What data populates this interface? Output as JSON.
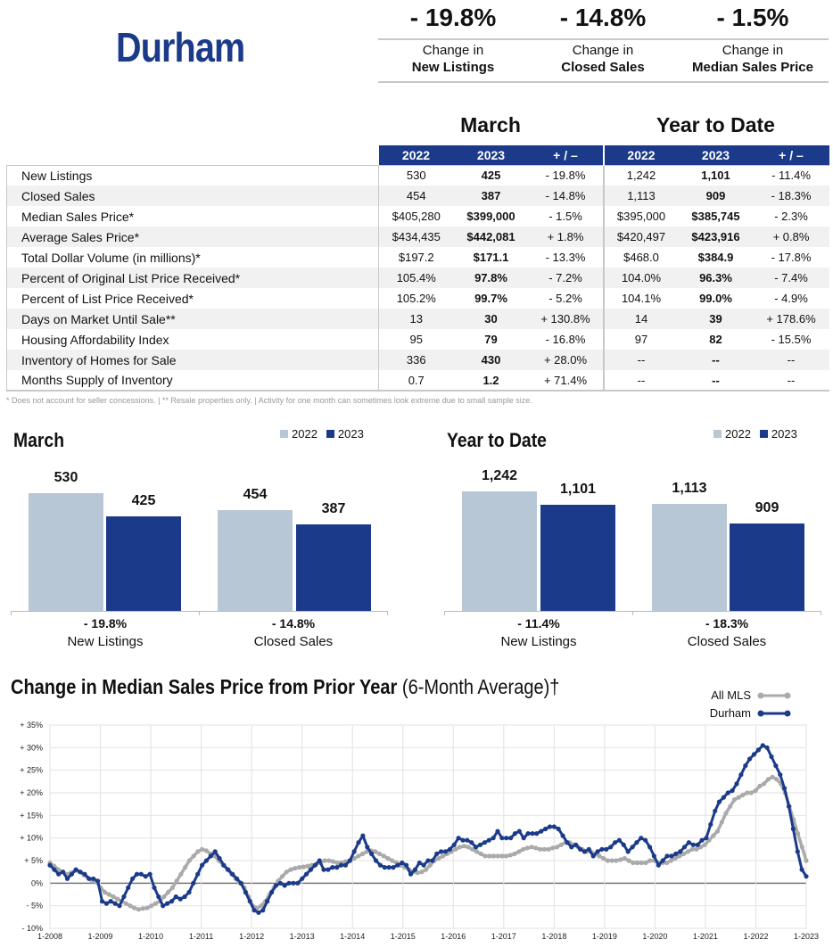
{
  "area_name": "Durham",
  "kpis": [
    {
      "value": "- 19.8%",
      "line1": "Change in",
      "line2": "New Listings"
    },
    {
      "value": "- 14.8%",
      "line1": "Change in",
      "line2": "Closed Sales"
    },
    {
      "value": "- 1.5%",
      "line1": "Change in",
      "line2": "Median Sales Price"
    }
  ],
  "table": {
    "period1": "March",
    "period2": "Year to Date",
    "columns": [
      "2022",
      "2023",
      "+ / –",
      "2022",
      "2023",
      "+ / –"
    ],
    "rows": [
      {
        "label": "New Listings",
        "m22": "530",
        "m23": "425",
        "mchg": "- 19.8%",
        "y22": "1,242",
        "y23": "1,101",
        "ychg": "- 11.4%"
      },
      {
        "label": "Closed Sales",
        "m22": "454",
        "m23": "387",
        "mchg": "- 14.8%",
        "y22": "1,113",
        "y23": "909",
        "ychg": "- 18.3%"
      },
      {
        "label": "Median Sales Price*",
        "m22": "$405,280",
        "m23": "$399,000",
        "mchg": "- 1.5%",
        "y22": "$395,000",
        "y23": "$385,745",
        "ychg": "- 2.3%"
      },
      {
        "label": "Average Sales Price*",
        "m22": "$434,435",
        "m23": "$442,081",
        "mchg": "+ 1.8%",
        "y22": "$420,497",
        "y23": "$423,916",
        "ychg": "+ 0.8%"
      },
      {
        "label": "Total Dollar Volume (in millions)*",
        "m22": "$197.2",
        "m23": "$171.1",
        "mchg": "- 13.3%",
        "y22": "$468.0",
        "y23": "$384.9",
        "ychg": "- 17.8%"
      },
      {
        "label": "Percent of Original List Price Received*",
        "m22": "105.4%",
        "m23": "97.8%",
        "mchg": "- 7.2%",
        "y22": "104.0%",
        "y23": "96.3%",
        "ychg": "- 7.4%"
      },
      {
        "label": "Percent of List Price Received*",
        "m22": "105.2%",
        "m23": "99.7%",
        "mchg": "- 5.2%",
        "y22": "104.1%",
        "y23": "99.0%",
        "ychg": "- 4.9%"
      },
      {
        "label": "Days on Market Until Sale**",
        "m22": "13",
        "m23": "30",
        "mchg": "+ 130.8%",
        "y22": "14",
        "y23": "39",
        "ychg": "+ 178.6%"
      },
      {
        "label": "Housing Affordability Index",
        "m22": "95",
        "m23": "79",
        "mchg": "- 16.8%",
        "y22": "97",
        "y23": "82",
        "ychg": "- 15.5%"
      },
      {
        "label": "Inventory of Homes for Sale",
        "m22": "336",
        "m23": "430",
        "mchg": "+ 28.0%",
        "y22": "--",
        "y23": "--",
        "ychg": "--"
      },
      {
        "label": "Months Supply of Inventory",
        "m22": "0.7",
        "m23": "1.2",
        "mchg": "+ 71.4%",
        "y22": "--",
        "y23": "--",
        "ychg": "--"
      }
    ],
    "footnote": "* Does not account for seller concessions.  |  ** Resale properties only.  |  Activity for one month can sometimes look extreme due to small sample size."
  },
  "colors": {
    "brand": "#1b3b8a",
    "light": "#b7c7d6",
    "allmls": "#aaaaaa",
    "neg": "#111111"
  },
  "chart_data": [
    {
      "type": "bar",
      "title": "March",
      "legend": [
        "2022",
        "2023"
      ],
      "categories": [
        "New Listings",
        "Closed Sales"
      ],
      "category_changes": [
        "- 19.8%",
        "- 14.8%"
      ],
      "series": [
        {
          "name": "2022",
          "values": [
            530,
            454
          ],
          "labels": [
            "530",
            "454"
          ]
        },
        {
          "name": "2023",
          "values": [
            425,
            387
          ],
          "labels": [
            "425",
            "387"
          ]
        }
      ],
      "legend_position": "top-right"
    },
    {
      "type": "bar",
      "title": "Year to Date",
      "legend": [
        "2022",
        "2023"
      ],
      "categories": [
        "New Listings",
        "Closed Sales"
      ],
      "category_changes": [
        "- 11.4%",
        "- 18.3%"
      ],
      "series": [
        {
          "name": "2022",
          "values": [
            1242,
            1113
          ],
          "labels": [
            "1,242",
            "1,113"
          ]
        },
        {
          "name": "2023",
          "values": [
            1101,
            909
          ],
          "labels": [
            "1,101",
            "909"
          ]
        }
      ],
      "legend_position": "top-right"
    },
    {
      "type": "line",
      "title": "Change in Median Sales Price from Prior Year",
      "subtitle": "(6-Month Average)†",
      "legend_position": "top-right",
      "grid": true,
      "ylim": [
        -10,
        35
      ],
      "y_ticks": [
        {
          "value": -10,
          "label": "- 10%"
        },
        {
          "value": -5,
          "label": "- 5%"
        },
        {
          "value": 0,
          "label": "0%"
        },
        {
          "value": 5,
          "label": "+ 5%"
        },
        {
          "value": 10,
          "label": "+ 10%"
        },
        {
          "value": 15,
          "label": "+ 15%"
        },
        {
          "value": 20,
          "label": "+ 20%"
        },
        {
          "value": 25,
          "label": "+ 25%"
        },
        {
          "value": 30,
          "label": "+ 30%"
        },
        {
          "value": 35,
          "label": "+ 35%"
        }
      ],
      "x_ticks": [
        "1-2008",
        "1-2009",
        "1-2010",
        "1-2011",
        "1-2012",
        "1-2013",
        "1-2014",
        "1-2015",
        "1-2016",
        "1-2017",
        "1-2018",
        "1-2019",
        "1-2020",
        "1-2021",
        "1-2022",
        "1-2023"
      ],
      "x_start_year": 2008,
      "series": [
        {
          "name": "All MLS",
          "values": [
            4.5,
            3.8,
            3.0,
            2.5,
            2.0,
            2.3,
            2.8,
            2.5,
            1.8,
            1.2,
            0.5,
            0.2,
            -1.0,
            -2.0,
            -2.5,
            -3.0,
            -3.5,
            -4.0,
            -4.5,
            -5.0,
            -5.5,
            -5.8,
            -5.6,
            -5.5,
            -5.0,
            -4.5,
            -4.0,
            -3.0,
            -2.0,
            -1.0,
            0.5,
            2.0,
            3.5,
            5.0,
            6.0,
            7.0,
            7.5,
            7.2,
            6.5,
            6.0,
            5.0,
            4.0,
            3.0,
            2.0,
            1.0,
            0.0,
            -1.0,
            -3.0,
            -5.0,
            -5.5,
            -5.0,
            -4.0,
            -2.5,
            -1.0,
            0.5,
            1.5,
            2.5,
            3.0,
            3.3,
            3.5,
            3.6,
            3.8,
            4.0,
            4.2,
            4.5,
            5.0,
            5.0,
            4.8,
            4.5,
            4.5,
            4.8,
            5.0,
            5.5,
            6.0,
            6.5,
            7.0,
            7.2,
            7.0,
            6.5,
            6.0,
            5.5,
            5.0,
            4.5,
            4.0,
            3.5,
            3.0,
            2.5,
            2.3,
            2.5,
            3.0,
            4.0,
            5.0,
            5.5,
            6.0,
            6.5,
            7.0,
            7.5,
            8.0,
            8.2,
            8.0,
            7.5,
            7.0,
            6.5,
            6.0,
            6.0,
            6.0,
            6.0,
            6.0,
            6.0,
            6.2,
            6.5,
            7.0,
            7.5,
            7.8,
            8.0,
            7.8,
            7.5,
            7.5,
            7.5,
            7.8,
            8.0,
            8.5,
            9.0,
            9.0,
            8.5,
            8.0,
            7.5,
            7.0,
            7.0,
            6.5,
            6.0,
            5.5,
            5.0,
            5.0,
            5.0,
            5.2,
            5.5,
            5.0,
            4.5,
            4.5,
            4.5,
            4.5,
            5.0,
            5.0,
            4.5,
            4.5,
            4.5,
            5.0,
            5.5,
            6.0,
            6.5,
            7.0,
            7.5,
            7.5,
            8.0,
            8.5,
            9.5,
            10.5,
            11.5,
            13.5,
            15.5,
            17.0,
            18.5,
            19.0,
            19.5,
            20.0,
            20.0,
            20.5,
            21.5,
            22.0,
            23.0,
            23.5,
            23.0,
            22.0,
            20.0,
            17.0,
            14.0,
            11.0,
            8.0,
            5.0
          ]
        },
        {
          "name": "Durham",
          "values": [
            4.0,
            3.0,
            2.0,
            2.5,
            1.0,
            2.0,
            3.0,
            2.5,
            2.0,
            1.0,
            1.0,
            0.5,
            -4.0,
            -4.5,
            -4.0,
            -4.5,
            -5.0,
            -3.0,
            -1.0,
            1.0,
            2.0,
            2.0,
            1.5,
            2.0,
            -1.0,
            -3.0,
            -5.0,
            -4.5,
            -4.0,
            -3.0,
            -3.5,
            -3.0,
            -2.0,
            0.0,
            2.0,
            4.0,
            5.0,
            6.0,
            7.0,
            5.5,
            4.0,
            3.0,
            2.0,
            1.0,
            0.0,
            -2.0,
            -4.0,
            -6.0,
            -6.5,
            -6.0,
            -4.0,
            -2.0,
            -0.5,
            0.0,
            -0.5,
            0.0,
            0.0,
            0.0,
            1.0,
            2.0,
            3.0,
            4.0,
            5.0,
            3.0,
            3.0,
            3.5,
            3.5,
            4.0,
            4.0,
            5.0,
            7.0,
            9.0,
            10.5,
            8.0,
            6.5,
            5.0,
            4.0,
            3.5,
            3.5,
            3.5,
            4.0,
            4.5,
            4.0,
            2.0,
            3.0,
            4.5,
            4.0,
            5.0,
            5.0,
            6.5,
            7.0,
            7.0,
            7.5,
            8.5,
            10.0,
            9.5,
            9.5,
            9.0,
            8.0,
            8.5,
            9.0,
            9.5,
            10.0,
            11.5,
            10.0,
            10.0,
            10.0,
            11.0,
            11.5,
            10.0,
            11.0,
            11.0,
            11.0,
            11.5,
            12.0,
            12.5,
            12.5,
            12.0,
            10.5,
            9.0,
            8.0,
            8.5,
            7.5,
            7.0,
            7.5,
            6.0,
            7.0,
            7.5,
            7.5,
            8.0,
            9.0,
            9.5,
            8.5,
            7.0,
            8.0,
            9.0,
            10.0,
            9.5,
            8.0,
            6.0,
            4.0,
            5.0,
            6.0,
            6.0,
            6.5,
            7.0,
            8.0,
            9.0,
            8.5,
            8.5,
            9.5,
            10.0,
            13.0,
            16.0,
            18.0,
            19.0,
            20.0,
            20.5,
            22.0,
            24.0,
            26.0,
            27.5,
            28.5,
            29.5,
            30.5,
            30.0,
            28.0,
            26.0,
            24.0,
            21.0,
            17.0,
            12.0,
            7.0,
            3.0,
            1.5
          ]
        }
      ]
    }
  ]
}
